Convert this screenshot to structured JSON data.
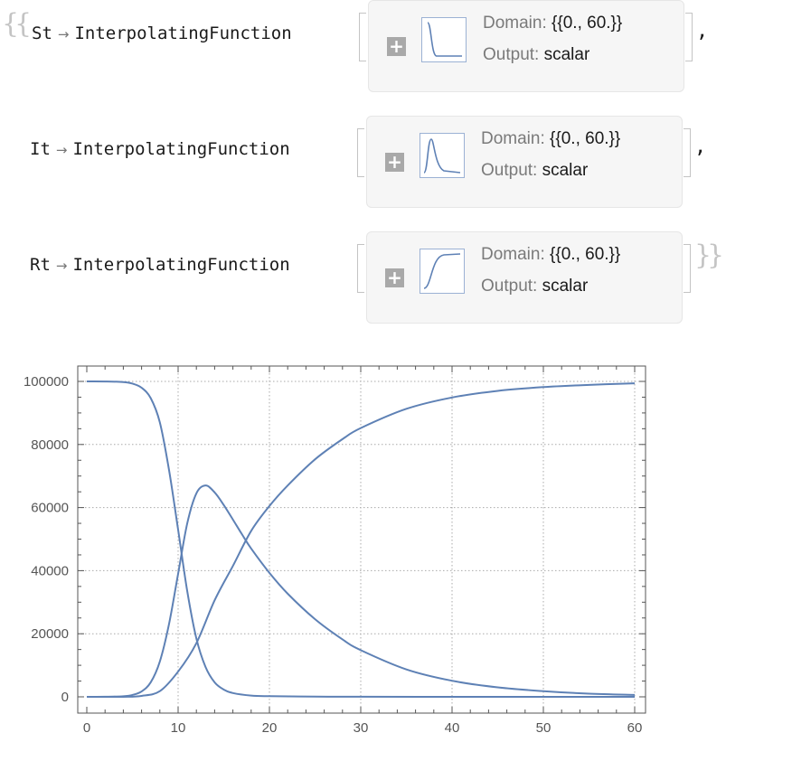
{
  "outputs": [
    {
      "symbol": "St",
      "head": "InterpolatingFunction",
      "domain_label": "Domain:",
      "domain_value": "{{0., 60.}}",
      "output_label": "Output:",
      "output_value": "scalar",
      "thumb_icon": "decreasing-curve-icon",
      "trailing": ","
    },
    {
      "symbol": "It",
      "head": "InterpolatingFunction",
      "domain_label": "Domain:",
      "domain_value": "{{0., 60.}}",
      "output_label": "Output:",
      "output_value": "scalar",
      "thumb_icon": "peak-curve-icon",
      "trailing": ","
    },
    {
      "symbol": "Rt",
      "head": "InterpolatingFunction",
      "domain_label": "Domain:",
      "domain_value": "{{0., 60.}}",
      "output_label": "Output:",
      "output_value": "scalar",
      "thumb_icon": "increasing-curve-icon",
      "trailing": ""
    }
  ],
  "arrow": "→",
  "expand_icon": "plus-icon",
  "chart_data": {
    "type": "line",
    "title": "",
    "xlabel": "",
    "ylabel": "",
    "xlim": [
      0,
      60
    ],
    "ylim": [
      0,
      100000
    ],
    "x_ticks": [
      0,
      10,
      20,
      30,
      40,
      50,
      60
    ],
    "y_ticks": [
      0,
      20000,
      40000,
      60000,
      80000,
      100000
    ],
    "x_tick_labels": [
      "0",
      "10",
      "20",
      "30",
      "40",
      "50",
      "60"
    ],
    "y_tick_labels": [
      "0",
      "20000",
      "40000",
      "60000",
      "80000",
      "100000"
    ],
    "grid": true,
    "color": "#5e81b5",
    "series": [
      {
        "x": [
          0,
          2,
          4,
          5,
          6,
          7,
          8,
          9,
          10,
          11,
          12,
          13,
          14,
          15,
          16,
          18,
          20,
          25,
          30,
          40,
          50,
          60
        ],
        "values": [
          100000,
          99980,
          99800,
          99300,
          98000,
          94700,
          87000,
          72000,
          53000,
          33500,
          18500,
          9500,
          4600,
          2300,
          1200,
          400,
          200,
          60,
          20,
          5,
          1,
          0
        ]
      },
      {
        "x": [
          0,
          2,
          4,
          5,
          6,
          7,
          8,
          9,
          10,
          11,
          12,
          13,
          14,
          15,
          16,
          17,
          18,
          20,
          22,
          25,
          28,
          30,
          35,
          40,
          45,
          50,
          55,
          60
        ],
        "values": [
          0,
          20,
          190,
          600,
          1700,
          4600,
          11200,
          23000,
          39000,
          55000,
          64500,
          67000,
          64800,
          60800,
          56200,
          51500,
          47000,
          39300,
          32700,
          24600,
          18200,
          14800,
          8700,
          5100,
          3000,
          1800,
          1000,
          600
        ]
      },
      {
        "x": [
          0,
          4,
          6,
          8,
          10,
          12,
          14,
          16,
          18,
          20,
          22,
          25,
          28,
          30,
          35,
          40,
          45,
          50,
          55,
          60
        ],
        "values": [
          0,
          10,
          300,
          1800,
          8000,
          17000,
          30600,
          41500,
          52600,
          60500,
          67000,
          75300,
          81700,
          85200,
          91300,
          94900,
          97000,
          98200,
          98900,
          99400
        ]
      }
    ]
  }
}
